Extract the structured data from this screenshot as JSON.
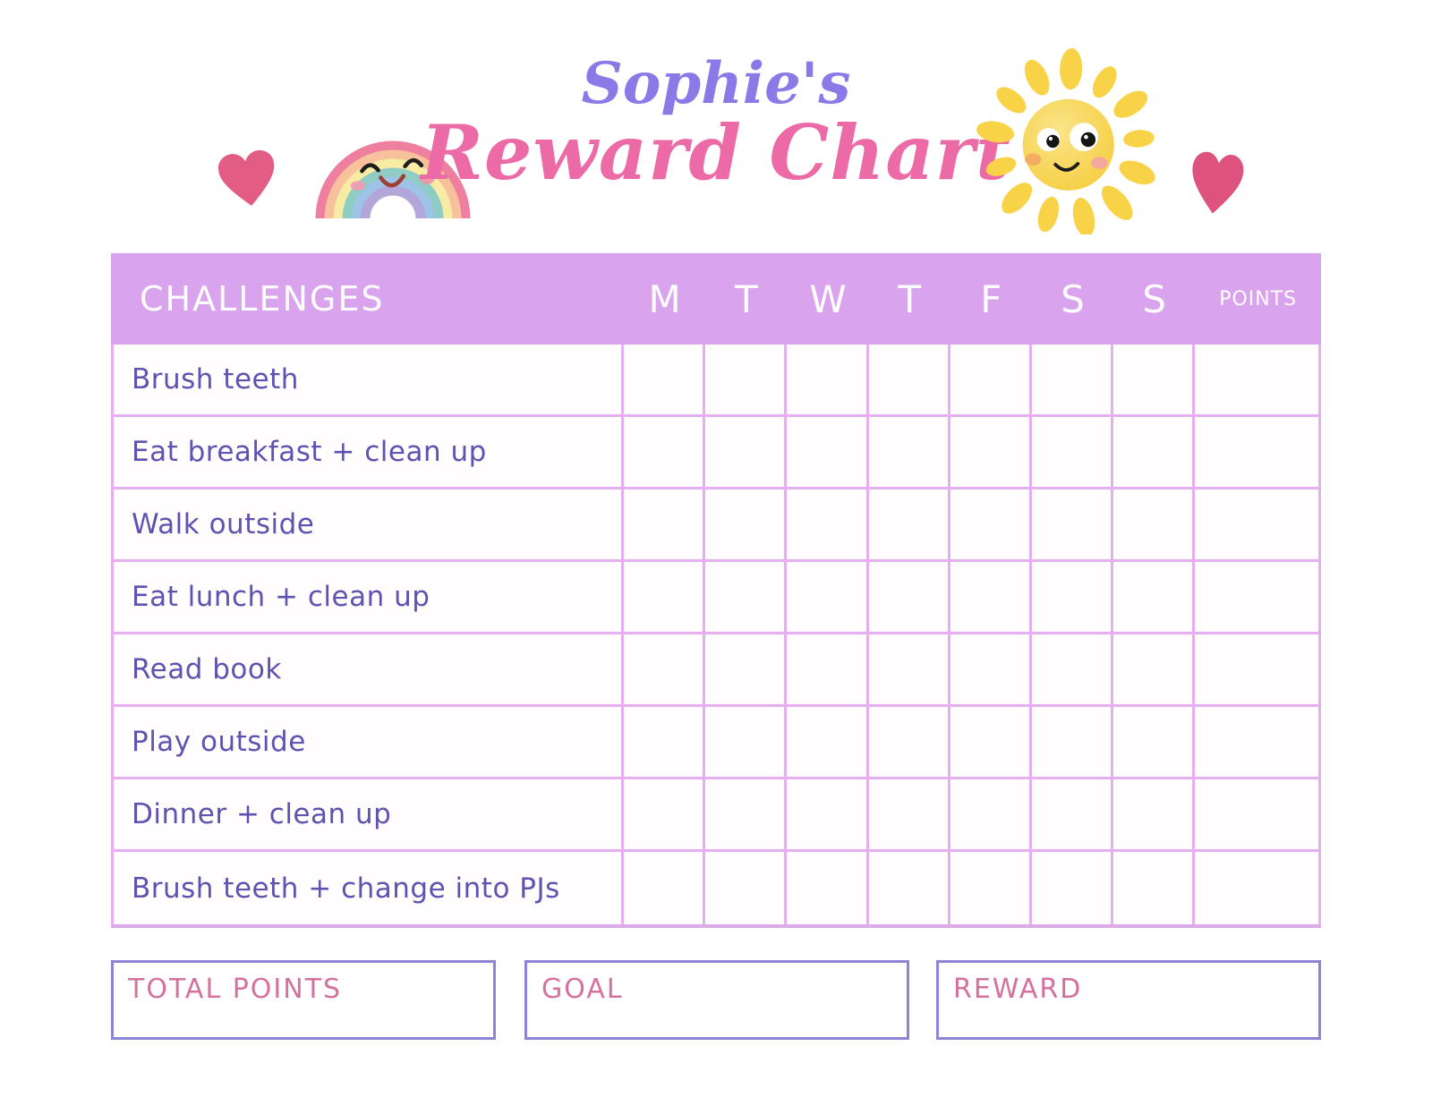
{
  "header": {
    "title_line1": "Sophie's",
    "title_line2": "Reward Chart",
    "icons": {
      "left_heart": "heart-icon",
      "rainbow": "rainbow-icon",
      "sun": "sun-icon",
      "right_heart": "heart-icon"
    }
  },
  "table": {
    "header": {
      "challenges": "CHALLENGES",
      "days": [
        "M",
        "T",
        "W",
        "T",
        "F",
        "S",
        "S"
      ],
      "points": "POINTS"
    },
    "challenges": [
      "Brush teeth",
      "Eat breakfast + clean up",
      "Walk outside",
      "Eat lunch + clean up",
      "Read book",
      "Play outside",
      "Dinner + clean up",
      "Brush teeth + change into PJs"
    ]
  },
  "footer": {
    "boxes": [
      {
        "label": "TOTAL POINTS"
      },
      {
        "label": "GOAL"
      },
      {
        "label": "REWARD"
      }
    ]
  },
  "colors": {
    "band": "#d9a3ed",
    "grid_line": "#e7aff2",
    "challenge_text": "#5f52b0",
    "title_purple": "#8a7ae8",
    "title_pink": "#ec6aa5",
    "footer_label": "#d4719f",
    "footer_border": "#8b85d6",
    "heart_pink": "#e25c84",
    "sun_yellow": "#f8d247"
  }
}
